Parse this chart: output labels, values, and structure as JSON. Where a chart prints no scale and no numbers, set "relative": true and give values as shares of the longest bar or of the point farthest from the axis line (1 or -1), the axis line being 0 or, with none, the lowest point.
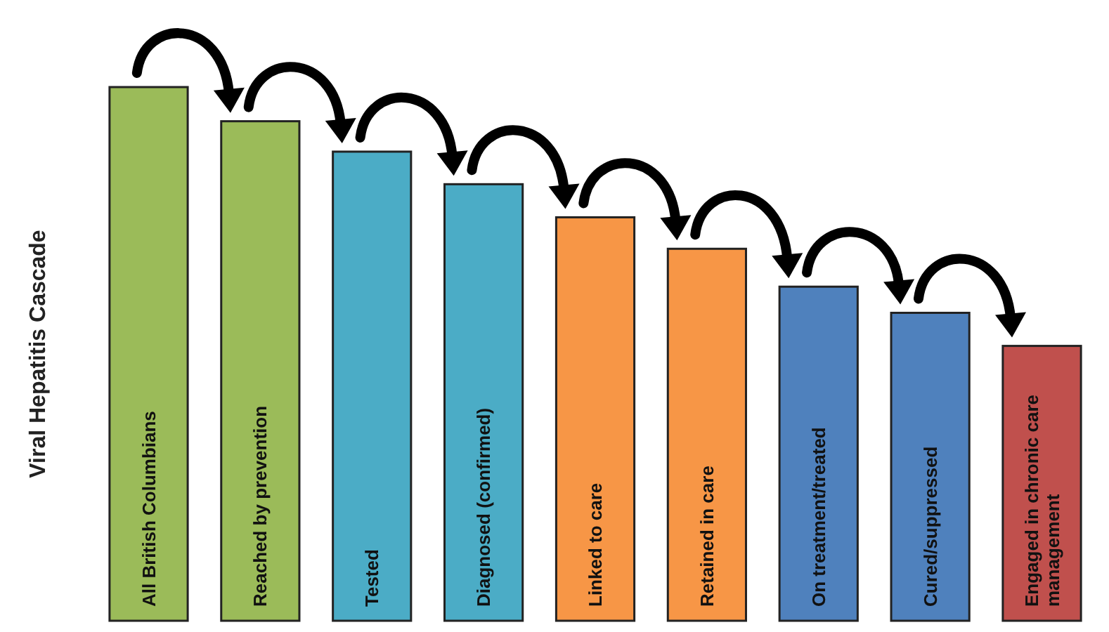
{
  "chart_data": {
    "type": "bar",
    "relative": true,
    "ylabel": "Viral Hepatitis Cascade",
    "categories": [
      "All British Columbians",
      "Reached by prevention",
      "Tested",
      "Diagnosed (confirmed)",
      "Linked to care",
      "Retained in care",
      "On treatment/treated",
      "Cured/suppressed",
      "Engaged in chronic care management"
    ],
    "values": [
      1,
      0.936,
      0.879,
      0.818,
      0.756,
      0.697,
      0.626,
      0.577,
      0.515
    ],
    "colors": [
      "#9bbb59",
      "#9bbb59",
      "#4bacc6",
      "#4bacc6",
      "#f79646",
      "#f79646",
      "#4f81bd",
      "#4f81bd",
      "#c0504d"
    ]
  }
}
